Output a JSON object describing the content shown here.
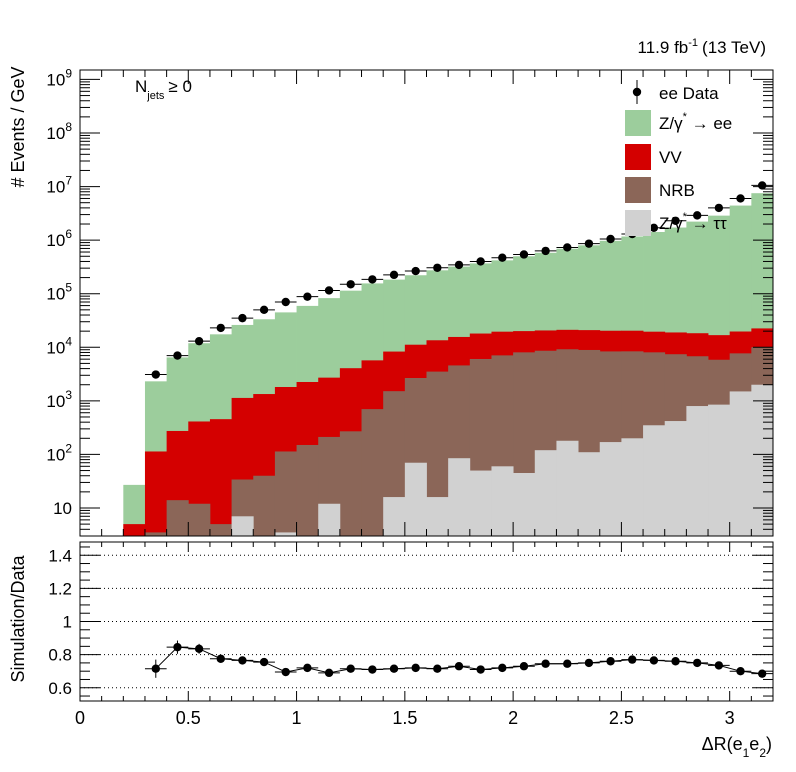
{
  "header": {
    "lumi_text": "11.9 fb-1 (13 TeV)",
    "lumi_value": "11.9 fb",
    "lumi_exp": "-1",
    "lumi_energy": "(13 TeV)"
  },
  "chart_data": {
    "type": "bar",
    "stacked": true,
    "log_y": true,
    "annotation": {
      "main": "N",
      "sub": "jets",
      "rest": "≥ 0"
    },
    "ylabel": "# Events / GeV",
    "xlabel": {
      "main": "ΔR(e",
      "sub1": "1",
      "mid": "e",
      "sub2": "2",
      "end": ")"
    },
    "xlim": [
      0,
      3.2
    ],
    "ylim": [
      3,
      1500000000
    ],
    "y_ticks": [
      {
        "v": 10,
        "label": "10",
        "exp": ""
      },
      {
        "v": 100,
        "label": "10",
        "exp": "2"
      },
      {
        "v": 1000,
        "label": "10",
        "exp": "3"
      },
      {
        "v": 10000,
        "label": "10",
        "exp": "4"
      },
      {
        "v": 100000,
        "label": "10",
        "exp": "5"
      },
      {
        "v": 1000000,
        "label": "10",
        "exp": "6"
      },
      {
        "v": 10000000,
        "label": "10",
        "exp": "7"
      },
      {
        "v": 100000000,
        "label": "10",
        "exp": "8"
      },
      {
        "v": 1000000000,
        "label": "10",
        "exp": "9"
      }
    ],
    "x_ticks": [
      "0",
      "0.5",
      "1",
      "1.5",
      "2",
      "2.5",
      "3"
    ],
    "bin_edges": [
      0.2,
      0.3,
      0.4,
      0.5,
      0.6,
      0.7,
      0.8,
      0.9,
      1.0,
      1.1,
      1.2,
      1.3,
      1.4,
      1.5,
      1.6,
      1.7,
      1.8,
      1.9,
      2.0,
      2.1,
      2.2,
      2.3,
      2.4,
      2.5,
      2.6,
      2.7,
      2.8,
      2.9,
      3.0,
      3.1,
      3.2
    ],
    "series": [
      {
        "name": "Z/γ* → ττ",
        "color": "#d1d1d1",
        "values": [
          0,
          0,
          0,
          0,
          0,
          7,
          0,
          3.5,
          0,
          12,
          0,
          0,
          16,
          70,
          16,
          85,
          50,
          60,
          45,
          120,
          180,
          110,
          170,
          200,
          350,
          420,
          800,
          850,
          1500,
          2000
        ]
      },
      {
        "name": "NRB",
        "color": "#8b6658",
        "values": [
          2.5,
          3.5,
          14,
          12,
          5,
          27,
          40,
          110,
          150,
          200,
          270,
          700,
          1500,
          2600,
          3500,
          4500,
          6000,
          7000,
          8000,
          8500,
          9000,
          8800,
          8200,
          8200,
          7700,
          7000,
          6000,
          5000,
          6200,
          8000
        ]
      },
      {
        "name": "VV",
        "color": "#d40000",
        "values": [
          2.5,
          110,
          260,
          400,
          450,
          1100,
          1300,
          1700,
          2100,
          2500,
          3800,
          5000,
          6800,
          8500,
          10000,
          11000,
          12000,
          12500,
          12000,
          12000,
          12000,
          12000,
          12000,
          12000,
          11500,
          11500,
          11500,
          11000,
          12000,
          12500
        ]
      },
      {
        "name": "Z/γ* → ee",
        "color": "#9ccd9c",
        "values": [
          22,
          2200,
          6200,
          11500,
          17000,
          25000,
          32000,
          43000,
          57000,
          80000,
          110000,
          150000,
          175000,
          210000,
          260000,
          305000,
          350000,
          400000,
          480000,
          560000,
          670000,
          780000,
          950000,
          1150000,
          1400000,
          1700000,
          2200000,
          2850000,
          4400000,
          7500000
        ]
      }
    ],
    "data_series": {
      "name": "ee Data",
      "x": [
        0.35,
        0.45,
        0.55,
        0.65,
        0.75,
        0.85,
        0.95,
        1.05,
        1.15,
        1.25,
        1.35,
        1.45,
        1.55,
        1.65,
        1.75,
        1.85,
        1.95,
        2.05,
        2.15,
        2.25,
        2.35,
        2.45,
        2.55,
        2.65,
        2.75,
        2.85,
        2.95,
        3.05,
        3.15
      ],
      "y": [
        3100,
        7000,
        13000,
        23000,
        35000,
        50000,
        70000,
        88000,
        115000,
        150000,
        185000,
        225000,
        265000,
        305000,
        345000,
        400000,
        470000,
        540000,
        630000,
        730000,
        860000,
        1050000,
        1300000,
        1700000,
        2300000,
        2900000,
        4000000,
        6000000,
        10500000
      ]
    },
    "legend": {
      "position": "top-right",
      "entries": [
        {
          "kind": "marker",
          "text": "ee Data"
        },
        {
          "kind": "box",
          "color": "#9ccd9c",
          "text": "Z/γ* → ee",
          "pre": "Z/γ",
          "sup": "*",
          "post": " → ee"
        },
        {
          "kind": "box",
          "color": "#d40000",
          "text": "VV"
        },
        {
          "kind": "box",
          "color": "#8b6658",
          "text": "NRB"
        },
        {
          "kind": "box",
          "color": "#d1d1d1",
          "text": "Z/γ* → ττ",
          "pre": "Z/γ",
          "sup": "*",
          "post": " → ττ"
        }
      ]
    },
    "ratio": {
      "ylabel": "Simulation/Data",
      "ylim": [
        0.52,
        1.48
      ],
      "y_ticks": [
        "0.6",
        "0.8",
        "1",
        "1.2",
        "1.4"
      ],
      "gridlines": [
        0.6,
        0.8,
        1.0,
        1.2,
        1.4
      ],
      "x": [
        0.35,
        0.45,
        0.55,
        0.65,
        0.75,
        0.85,
        0.95,
        1.05,
        1.15,
        1.25,
        1.35,
        1.45,
        1.55,
        1.65,
        1.75,
        1.85,
        1.95,
        2.05,
        2.15,
        2.25,
        2.35,
        2.45,
        2.55,
        2.65,
        2.75,
        2.85,
        2.95,
        3.05,
        3.15
      ],
      "values": [
        0.715,
        0.845,
        0.835,
        0.775,
        0.765,
        0.755,
        0.695,
        0.72,
        0.69,
        0.715,
        0.71,
        0.715,
        0.72,
        0.715,
        0.73,
        0.71,
        0.72,
        0.73,
        0.745,
        0.745,
        0.75,
        0.76,
        0.77,
        0.765,
        0.76,
        0.75,
        0.735,
        0.7,
        0.685
      ],
      "errors": [
        0.055,
        0.04,
        0.03,
        0.02,
        0.015,
        0.012,
        0.01,
        0.01,
        0.01,
        0.008,
        0.008,
        0.008,
        0.008,
        0.008,
        0.008,
        0.008,
        0.008,
        0.008,
        0.008,
        0.008,
        0.008,
        0.008,
        0.008,
        0.008,
        0.008,
        0.008,
        0.008,
        0.008,
        0.008
      ]
    }
  }
}
